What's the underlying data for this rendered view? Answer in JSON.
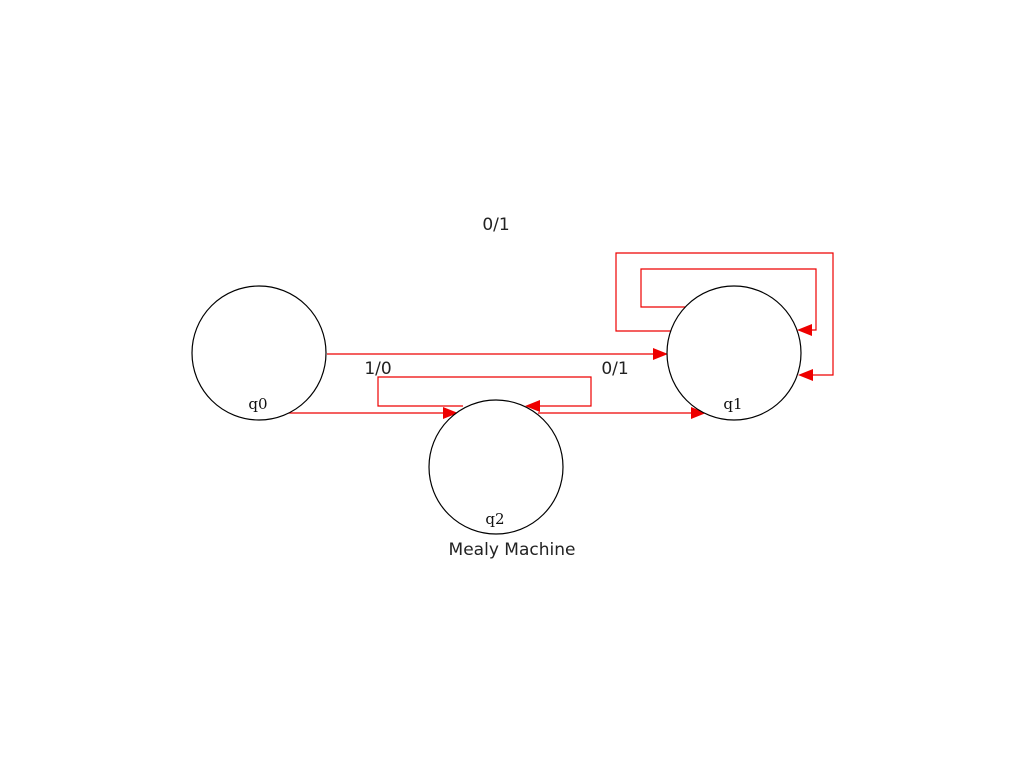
{
  "diagram": {
    "caption": "Mealy Machine",
    "edge_color": "#ee0000",
    "states": [
      {
        "id": "q0",
        "label": "q0"
      },
      {
        "id": "q1",
        "label": "q1"
      },
      {
        "id": "q2",
        "label": "q2"
      }
    ],
    "transitions": [
      {
        "from": "q0",
        "to": "q1",
        "label": ""
      },
      {
        "from": "q0",
        "to": "q2",
        "label": "1/0"
      },
      {
        "from": "q2",
        "to": "q1",
        "label": "0/1"
      },
      {
        "from": "q2",
        "to": "q2",
        "label": ""
      },
      {
        "from": "q1",
        "to": "q1",
        "label": "0/1"
      },
      {
        "from": "q1",
        "to": "q1",
        "label": ""
      }
    ]
  }
}
